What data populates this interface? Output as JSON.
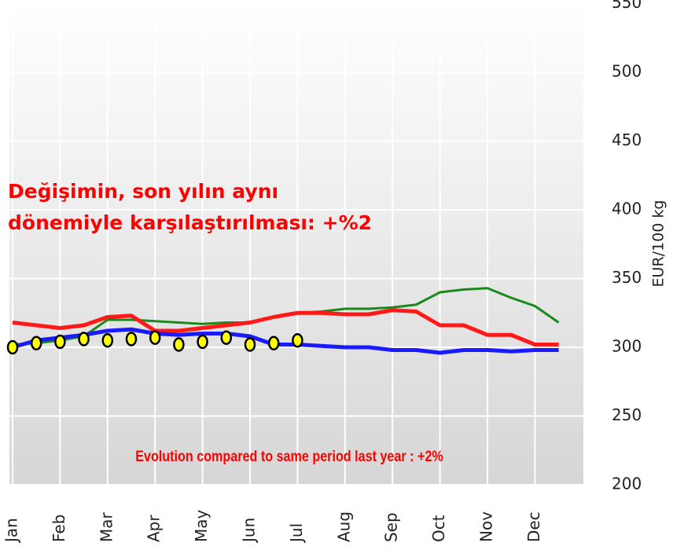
{
  "chart_data": {
    "type": "line",
    "y_label": "EUR/100 kg",
    "annotations": [
      "Değişimin,  son  yılın aynı",
      "dönemiyle  karşılaştırılması: +%2",
      "Evolution compared to same period last year : +2%"
    ],
    "categories": [
      "Jan",
      null,
      "Feb",
      null,
      "Mar",
      null,
      "Apr",
      null,
      "May",
      null,
      "Jun",
      null,
      "Jul",
      null,
      "Aug",
      null,
      "Sep",
      null,
      "Oct",
      null,
      "Nov",
      null,
      "Dec",
      null
    ],
    "ylim": [
      200,
      550
    ],
    "yticks": [
      200,
      250,
      300,
      350,
      400,
      450,
      500,
      550
    ],
    "grid": true,
    "series": [
      {
        "color": "#1a8a1a",
        "marker": "none",
        "values": [
          302,
          303,
          305,
          308,
          320,
          320,
          319,
          318,
          317,
          318,
          318,
          322,
          325,
          326,
          328,
          328,
          329,
          331,
          340,
          342,
          343,
          336,
          330,
          318
        ]
      },
      {
        "color": "#ff1a1a",
        "marker": "none",
        "values": [
          318,
          316,
          314,
          316,
          322,
          323,
          312,
          312,
          314,
          316,
          318,
          322,
          325,
          325,
          324,
          324,
          327,
          326,
          316,
          316,
          309,
          309,
          302,
          302
        ]
      },
      {
        "color": "#1a1aff",
        "marker": "none",
        "values": [
          300,
          305,
          307,
          309,
          312,
          313,
          310,
          309,
          310,
          310,
          308,
          302,
          302,
          301,
          300,
          300,
          298,
          298,
          296,
          298,
          298,
          297,
          298,
          298
        ]
      },
      {
        "color": "#ffff00",
        "marker": "dot",
        "values": [
          300,
          303,
          304,
          306,
          305,
          306,
          307,
          302,
          304,
          307,
          302,
          303,
          305,
          null,
          null,
          null,
          null,
          null,
          null,
          null,
          null,
          null,
          null,
          null
        ]
      }
    ]
  }
}
